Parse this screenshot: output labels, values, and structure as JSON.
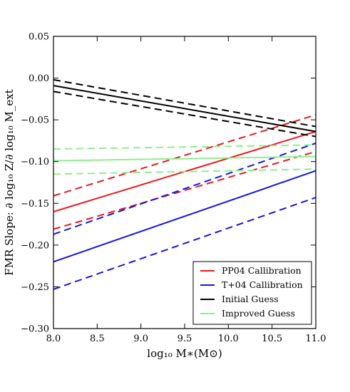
{
  "chart_data": {
    "type": "line",
    "xlabel": "log₁₀ M∗(M⊙)",
    "ylabel": "FMR Slope: ∂ log₁₀ Z/∂ log₁₀ M_ext",
    "xlim": [
      8.0,
      11.0
    ],
    "ylim": [
      -0.3,
      0.05
    ],
    "xticks": [
      "8.0",
      "8.5",
      "9.0",
      "9.5",
      "10.0",
      "10.5",
      "11.0"
    ],
    "yticks": [
      "0.05",
      "0.00",
      "−0.05",
      "−0.10",
      "−0.15",
      "−0.20",
      "−0.25",
      "−0.30"
    ],
    "legend_location": "lower-right",
    "series": [
      {
        "name": "PP04 Callibration",
        "color": "#e8191b",
        "x": [
          8.0,
          11.0
        ],
        "y": [
          -0.16,
          -0.064
        ],
        "band_low": [
          -0.181,
          -0.088
        ],
        "band_high": [
          -0.141,
          -0.044
        ]
      },
      {
        "name": "T+04 Callibration",
        "color": "#1515e6",
        "x": [
          8.0,
          11.0
        ],
        "y": [
          -0.22,
          -0.111
        ],
        "band_low": [
          -0.253,
          -0.143
        ],
        "band_high": [
          -0.187,
          -0.078
        ]
      },
      {
        "name": "Initial Guess",
        "color": "#000000",
        "x": [
          8.0,
          11.0
        ],
        "y": [
          -0.009,
          -0.064
        ],
        "band_low": [
          -0.016,
          -0.07
        ],
        "band_high": [
          -0.002,
          -0.058
        ]
      },
      {
        "name": "Improved Guess",
        "color": "#90ee90",
        "x": [
          8.0,
          11.0
        ],
        "y": [
          -0.099,
          -0.094
        ],
        "band_low": [
          -0.115,
          -0.109
        ],
        "band_high": [
          -0.085,
          -0.08
        ]
      }
    ]
  }
}
